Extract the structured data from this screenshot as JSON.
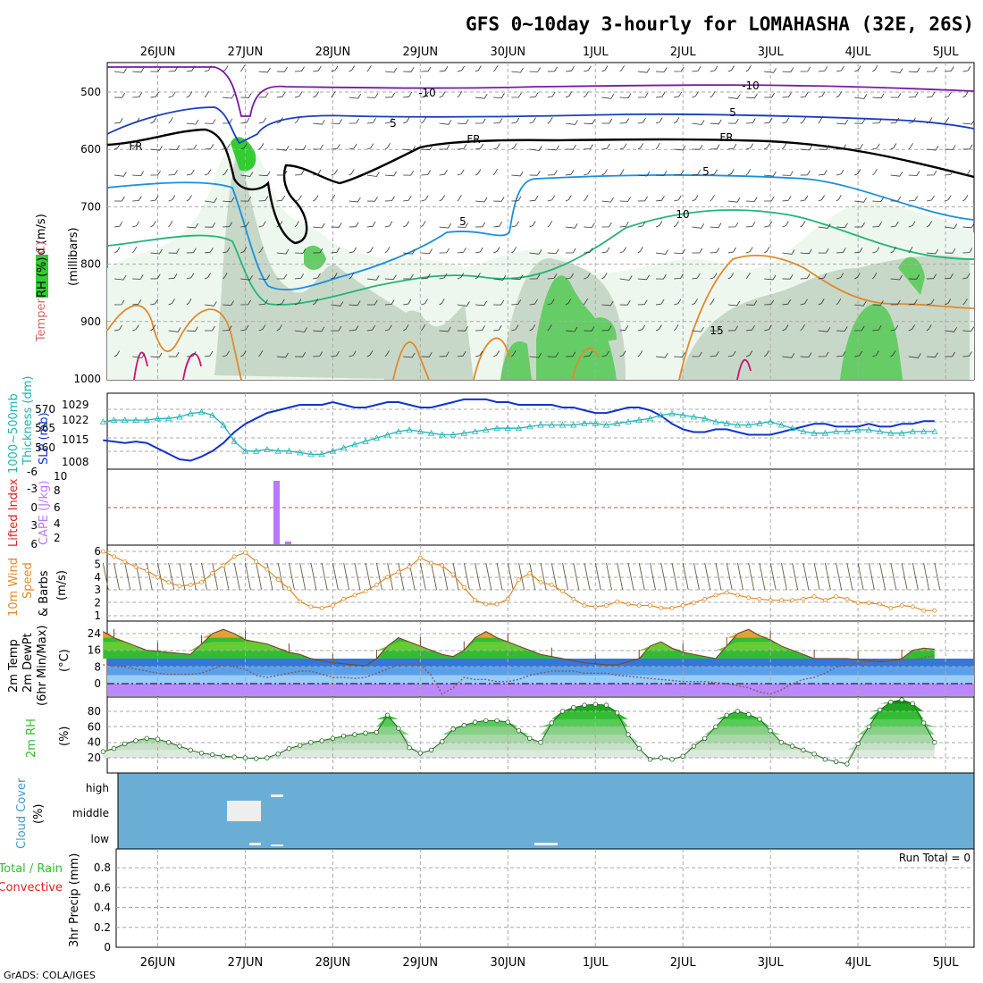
{
  "title": "GFS 0~10day 3-hourly for LOMAHASHA (32E, 26S)",
  "credit": "GrADS: COLA/IGES",
  "dates": [
    "26JUN",
    "27JUN",
    "28JUN",
    "29JUN",
    "30JUN",
    "1JUL",
    "2JUL",
    "3JUL",
    "4JUL",
    "5JUL"
  ],
  "colors": {
    "grid": "#aaaaaa",
    "rh": "#33cc33",
    "slp": "#1133cc",
    "thickness": "#22b3b3",
    "cape": "#bb77ff",
    "lifted": "#dd2222",
    "wind": "#e08a2a",
    "temp_fill": "#22aa22",
    "dewpt": "#8a5a5a",
    "cloud": "#6aaed6",
    "precip": "#33bb33"
  },
  "panels": {
    "upper": {
      "labels": [
        "Wind (m/s)",
        "Temperature (°C)",
        "RH (%)",
        "(millibars)"
      ],
      "yticks": [
        "500",
        "600",
        "700",
        "800",
        "900",
        "1000"
      ],
      "contour_labels": [
        "-10",
        "-10",
        "5",
        "5",
        "5",
        "5",
        "10",
        "15",
        "FR",
        "FR",
        "FR"
      ]
    },
    "pressure": {
      "labels": [
        "1000~500mb",
        "Thickness (dm)",
        "SLP (mb)"
      ],
      "left_ticks": [
        "570",
        "565",
        "560"
      ],
      "right_ticks": [
        "1029",
        "1022",
        "1015",
        "1008"
      ]
    },
    "cape": {
      "labels": [
        "Lifted Index",
        "CAPE (J/kg)"
      ],
      "left_ticks": [
        "-6",
        "-3",
        "0",
        "3",
        "6"
      ],
      "right_ticks": [
        "10",
        "8",
        "6",
        "4",
        "2"
      ]
    },
    "wind10m": {
      "labels": [
        "10m Wind",
        "Speed",
        "& Barbs",
        "(m/s)"
      ],
      "yticks": [
        "6",
        "5",
        "4",
        "3",
        "2",
        "1"
      ]
    },
    "temp": {
      "labels": [
        "2m Temp",
        "2m DewPt",
        "(6hr Min/Max)",
        "(°C)"
      ],
      "yticks": [
        "24",
        "16",
        "8",
        "0"
      ]
    },
    "rh2m": {
      "labels": [
        "2m RH",
        "(%)"
      ],
      "yticks": [
        "80",
        "60",
        "40",
        "20"
      ]
    },
    "cloud": {
      "labels": [
        "Cloud Cover",
        "(%)"
      ],
      "levels": [
        "high",
        "middle",
        "low"
      ]
    },
    "precip": {
      "labels": [
        "Total / Rain",
        "Convective",
        "3hr Precip (mm)"
      ],
      "yticks": [
        "0.8",
        "0.6",
        "0.4",
        "0.2",
        "0"
      ],
      "run_total": "Run Total = 0"
    }
  },
  "chart_data": [
    {
      "type": "line",
      "title": "Sea level pressure and 1000~500mb thickness",
      "x": [
        "25/21",
        "26/00",
        "26/03",
        "26/06",
        "26/09",
        "26/12",
        "26/15",
        "26/18",
        "26/21",
        "27/00",
        "27/03",
        "27/06",
        "27/09",
        "27/12",
        "27/15",
        "27/18",
        "27/21",
        "28/00",
        "28/03",
        "28/06",
        "28/09",
        "28/12",
        "28/15",
        "28/18",
        "28/21",
        "29/00",
        "29/03",
        "29/06",
        "29/09",
        "29/12",
        "29/15",
        "29/18",
        "29/21",
        "30/00",
        "30/03",
        "30/06",
        "30/09",
        "30/12",
        "30/15",
        "30/18",
        "30/21",
        "01/00",
        "01/03",
        "01/06",
        "01/09",
        "01/12",
        "01/15",
        "01/18",
        "01/21",
        "02/00",
        "02/03",
        "02/06",
        "02/09",
        "02/12",
        "02/15",
        "02/18",
        "02/21",
        "03/00",
        "03/03",
        "03/06",
        "03/09",
        "03/12",
        "03/15",
        "03/18",
        "03/21",
        "04/00",
        "04/03",
        "04/06",
        "04/09",
        "04/12",
        "04/15",
        "04/18",
        "04/21",
        "05/00",
        "05/03",
        "05/06",
        "05/09"
      ],
      "series": [
        {
          "name": "SLP (mb)",
          "values": [
            1016,
            1015.5,
            1015,
            1015.5,
            1015,
            1013,
            1011,
            1009,
            1008.5,
            1010,
            1012,
            1015,
            1019,
            1022,
            1024,
            1026,
            1027,
            1028,
            1029,
            1029,
            1029,
            1030,
            1029,
            1028,
            1028,
            1029,
            1030,
            1030,
            1029,
            1028,
            1028,
            1029,
            1030,
            1031,
            1031,
            1031,
            1030,
            1030,
            1029,
            1029,
            1029,
            1029,
            1028,
            1028,
            1027,
            1026,
            1026,
            1027,
            1028,
            1028,
            1027,
            1025,
            1022,
            1020,
            1019,
            1019,
            1020,
            1020,
            1019,
            1018,
            1018,
            1018,
            1019,
            1020,
            1021,
            1022,
            1022,
            1021,
            1021,
            1021,
            1022,
            1021,
            1021,
            1022,
            1022,
            1023,
            1023
          ]
        },
        {
          "name": "Thickness (dm)",
          "values": [
            569,
            569.5,
            569.5,
            569.5,
            569.5,
            570,
            570,
            570.5,
            571.5,
            572,
            571,
            568,
            563,
            560,
            560,
            560.5,
            560,
            560,
            559.5,
            559,
            559,
            560,
            561,
            562,
            563,
            564,
            565,
            566,
            566.5,
            566,
            565.5,
            565,
            565,
            565.5,
            566,
            566.5,
            567,
            567,
            567,
            567.5,
            568,
            568,
            568,
            568,
            568.5,
            568.5,
            568,
            568.5,
            569,
            569.5,
            570,
            571,
            571.5,
            571,
            570.5,
            570,
            569,
            568.5,
            568,
            568,
            568.5,
            569,
            568,
            567,
            566,
            565.5,
            565.5,
            566,
            566,
            566.5,
            566.5,
            566,
            565.5,
            565.5,
            566,
            566,
            566
          ]
        }
      ],
      "ylim_left": [
        558,
        572
      ],
      "ylim_right": [
        1005,
        1033
      ]
    },
    {
      "type": "bar",
      "title": "CAPE",
      "categories": [
        "27/06",
        "27/09"
      ],
      "values": [
        9.5,
        1.0
      ],
      "ylabel": "CAPE (J/kg)",
      "ylim": [
        1,
        10.5
      ]
    },
    {
      "type": "line",
      "title": "10m wind speed",
      "x": [
        "25/21",
        "26/00",
        "26/03",
        "26/06",
        "26/09",
        "26/12",
        "26/15",
        "26/18",
        "26/21",
        "27/00",
        "27/03",
        "27/06",
        "27/09",
        "27/12",
        "27/15",
        "27/18",
        "27/21",
        "28/00",
        "28/03",
        "28/06",
        "28/09",
        "28/12",
        "28/15",
        "28/18",
        "28/21",
        "29/00",
        "29/03",
        "29/06",
        "29/09",
        "29/12",
        "29/15",
        "29/18",
        "29/21",
        "30/00",
        "30/03",
        "30/06",
        "30/09",
        "30/12",
        "30/15",
        "30/18",
        "30/21",
        "01/00",
        "01/03",
        "01/06",
        "01/09",
        "01/12",
        "01/15",
        "01/18",
        "01/21",
        "02/00",
        "02/03",
        "02/06",
        "02/09",
        "02/12",
        "02/15",
        "02/18",
        "02/21",
        "03/00",
        "03/03",
        "03/06",
        "03/09",
        "03/12",
        "03/15",
        "03/18",
        "03/21",
        "04/00",
        "04/03",
        "04/06",
        "04/09",
        "04/12",
        "04/15",
        "04/18",
        "04/21",
        "05/00",
        "05/03",
        "05/06",
        "05/09"
      ],
      "series": [
        {
          "name": "10m Wind Speed (m/s)",
          "values": [
            6,
            5.6,
            5.2,
            4.8,
            4.5,
            4,
            3.6,
            3.3,
            3.4,
            3.6,
            4.3,
            4.9,
            5.6,
            5.9,
            5.2,
            4.6,
            3.8,
            3.1,
            2.1,
            1.7,
            1.6,
            1.8,
            2.3,
            2.6,
            2.9,
            3.4,
            4.0,
            4.4,
            4.8,
            5.5,
            5.1,
            4.9,
            4.2,
            3.2,
            2.2,
            1.9,
            1.9,
            2.3,
            3.8,
            4.3,
            3.6,
            3.4,
            2.9,
            2.3,
            1.8,
            1.7,
            1.8,
            2.1,
            1.9,
            1.8,
            1.8,
            1.6,
            1.6,
            1.8,
            2.0,
            2.3,
            2.6,
            2.8,
            2.6,
            2.4,
            2.3,
            2.2,
            2.2,
            2.2,
            2.3,
            2.5,
            2.2,
            2.5,
            2.3,
            2.0,
            2.0,
            1.9,
            1.6,
            1.8,
            1.7,
            1.4,
            1.4
          ]
        }
      ],
      "ylim": [
        0.7,
        6.3
      ]
    },
    {
      "type": "area",
      "title": "2m temperature and dew point",
      "x": [
        "25/21",
        "26/00",
        "26/03",
        "26/06",
        "26/09",
        "26/12",
        "26/15",
        "26/18",
        "26/21",
        "27/00",
        "27/03",
        "27/06",
        "27/09",
        "27/12",
        "27/15",
        "27/18",
        "27/21",
        "28/00",
        "28/03",
        "28/06",
        "28/09",
        "28/12",
        "28/15",
        "28/18",
        "28/21",
        "29/00",
        "29/03",
        "29/06",
        "29/09",
        "29/12",
        "29/15",
        "29/18",
        "29/21",
        "30/00",
        "30/03",
        "30/06",
        "30/09",
        "30/12",
        "30/15",
        "30/18",
        "30/21",
        "01/00",
        "01/03",
        "01/06",
        "01/09",
        "01/12",
        "01/15",
        "01/18",
        "01/21",
        "02/00",
        "02/03",
        "02/06",
        "02/09",
        "02/12",
        "02/15",
        "02/18",
        "02/21",
        "03/00",
        "03/03",
        "03/06",
        "03/09",
        "03/12",
        "03/15",
        "03/18",
        "03/21",
        "04/00",
        "04/03",
        "04/06",
        "04/09",
        "04/12",
        "04/15",
        "04/18",
        "04/21",
        "05/00",
        "05/03",
        "05/06",
        "05/09"
      ],
      "series": [
        {
          "name": "2m Temp (°C)",
          "values": [
            25,
            22,
            20,
            18,
            16,
            15.5,
            15,
            14.5,
            14,
            19,
            24,
            26,
            24,
            21,
            20,
            19,
            17,
            15,
            14,
            12,
            11,
            10,
            9.5,
            9,
            8.5,
            12,
            18,
            22,
            20,
            18,
            16,
            14,
            13,
            16,
            22,
            25,
            22,
            20,
            18,
            16,
            14,
            13,
            12,
            11,
            10,
            9.5,
            9,
            9,
            10.5,
            12,
            18,
            20,
            17,
            15,
            14,
            13,
            12,
            18,
            24,
            26,
            23,
            21,
            18,
            16,
            14,
            12,
            12,
            12,
            12,
            11.5,
            11,
            10.5,
            11,
            12,
            16,
            17,
            16.5
          ]
        },
        {
          "name": "2m DewPt (°C)",
          "values": [
            9,
            8.5,
            8,
            7,
            6,
            5,
            4.5,
            4.5,
            4.5,
            5,
            7,
            9,
            8,
            7,
            4,
            3,
            4,
            5,
            6,
            6,
            4.5,
            3,
            3,
            2.5,
            3,
            5,
            7,
            9,
            9.5,
            9,
            4,
            -5,
            -2,
            3,
            2,
            2,
            1,
            1,
            2,
            4,
            5,
            6,
            6,
            6,
            5,
            5,
            5,
            4,
            3.5,
            3,
            2.5,
            2,
            1.5,
            1,
            1,
            1,
            0.5,
            0,
            -1,
            -2,
            -4,
            -5,
            -3,
            0,
            2,
            3,
            5,
            8,
            9,
            10,
            10.5,
            11,
            11,
            11,
            11,
            12.5,
            13.5
          ]
        }
      ],
      "ylim": [
        -3,
        29
      ]
    },
    {
      "type": "area",
      "title": "2m relative humidity",
      "x": [
        "25/21",
        "26/00",
        "26/03",
        "26/06",
        "26/09",
        "26/12",
        "26/15",
        "26/18",
        "26/21",
        "27/00",
        "27/03",
        "27/06",
        "27/09",
        "27/12",
        "27/15",
        "27/18",
        "27/21",
        "28/00",
        "28/03",
        "28/06",
        "28/09",
        "28/12",
        "28/15",
        "28/18",
        "28/21",
        "29/00",
        "29/03",
        "29/06",
        "29/09",
        "29/12",
        "29/15",
        "29/18",
        "29/21",
        "30/00",
        "30/03",
        "30/06",
        "30/09",
        "30/12",
        "30/15",
        "30/18",
        "30/21",
        "01/00",
        "01/03",
        "01/06",
        "01/09",
        "01/12",
        "01/15",
        "01/18",
        "01/21",
        "02/00",
        "02/03",
        "02/06",
        "02/09",
        "02/12",
        "02/15",
        "02/18",
        "02/21",
        "03/00",
        "03/03",
        "03/06",
        "03/09",
        "03/12",
        "03/15",
        "03/18",
        "03/21",
        "04/00",
        "04/03",
        "04/06",
        "04/09",
        "04/12",
        "04/15",
        "04/18",
        "04/21",
        "05/00",
        "05/03",
        "05/06",
        "05/09"
      ],
      "series": [
        {
          "name": "2m RH (%)",
          "values": [
            28,
            32,
            38,
            42,
            45,
            44,
            40,
            35,
            30,
            26,
            24,
            22,
            21,
            20,
            19,
            20,
            25,
            32,
            36,
            40,
            42,
            45,
            48,
            50,
            52,
            53,
            75,
            58,
            33,
            26,
            30,
            41,
            57,
            62,
            66,
            68,
            68,
            66,
            55,
            45,
            40,
            65,
            80,
            85,
            88,
            89,
            88,
            78,
            50,
            32,
            18,
            20,
            18,
            22,
            35,
            45,
            60,
            75,
            80,
            76,
            70,
            55,
            40,
            35,
            30,
            25,
            18,
            15,
            12,
            38,
            60,
            82,
            92,
            95,
            90,
            65,
            40
          ]
        }
      ],
      "ylim": [
        10,
        100
      ]
    },
    {
      "type": "heatmap",
      "title": "Cloud cover",
      "categories": [
        "high",
        "middle",
        "low"
      ],
      "values": [
        "overcast",
        "mostly overcast",
        "overcast"
      ]
    },
    {
      "type": "bar",
      "title": "3hr precipitation",
      "categories": [],
      "values": [],
      "ylabel": "3hr Precip (mm)",
      "ylim": [
        0,
        0.95
      ]
    }
  ]
}
